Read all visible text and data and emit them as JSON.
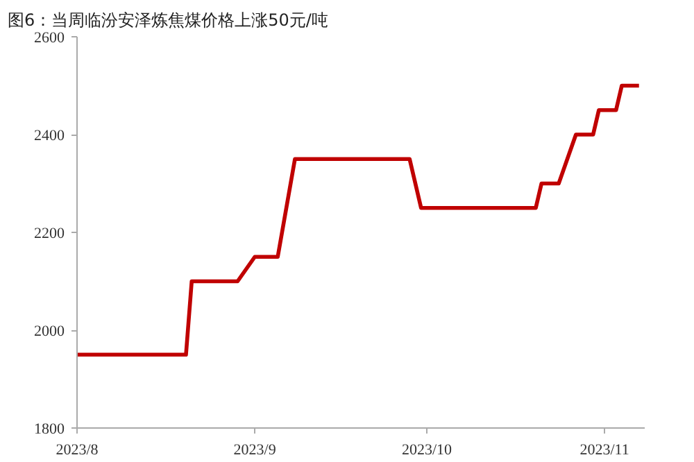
{
  "chart_data": {
    "type": "line",
    "title": "图6：当周临汾安泽炼焦煤价格上涨50元/吨",
    "x": [
      "2023-08-01",
      "2023-08-20",
      "2023-08-21",
      "2023-08-29",
      "2023-09-01",
      "2023-09-05",
      "2023-09-08",
      "2023-09-28",
      "2023-09-30",
      "2023-10-20",
      "2023-10-21",
      "2023-10-24",
      "2023-10-27",
      "2023-10-30",
      "2023-10-31",
      "2023-11-03",
      "2023-11-04",
      "2023-11-07"
    ],
    "series": [
      {
        "color": "#c00000",
        "values": [
          1950,
          1950,
          2100,
          2100,
          2150,
          2150,
          2350,
          2350,
          2250,
          2250,
          2300,
          2300,
          2400,
          2400,
          2450,
          2450,
          2500,
          2500
        ]
      }
    ],
    "xlim": [
      "2023-08-01",
      "2023-11-08"
    ],
    "xticks": [
      {
        "value": "2023-08-01",
        "label": "2023/8"
      },
      {
        "value": "2023-09-01",
        "label": "2023/9"
      },
      {
        "value": "2023-10-01",
        "label": "2023/10"
      },
      {
        "value": "2023-11-01",
        "label": "2023/11"
      }
    ],
    "ylim": [
      1800,
      2600
    ],
    "yticks": [
      1800,
      2000,
      2200,
      2400,
      2600
    ],
    "grid": false,
    "marker": "none",
    "line_style": "solid"
  }
}
